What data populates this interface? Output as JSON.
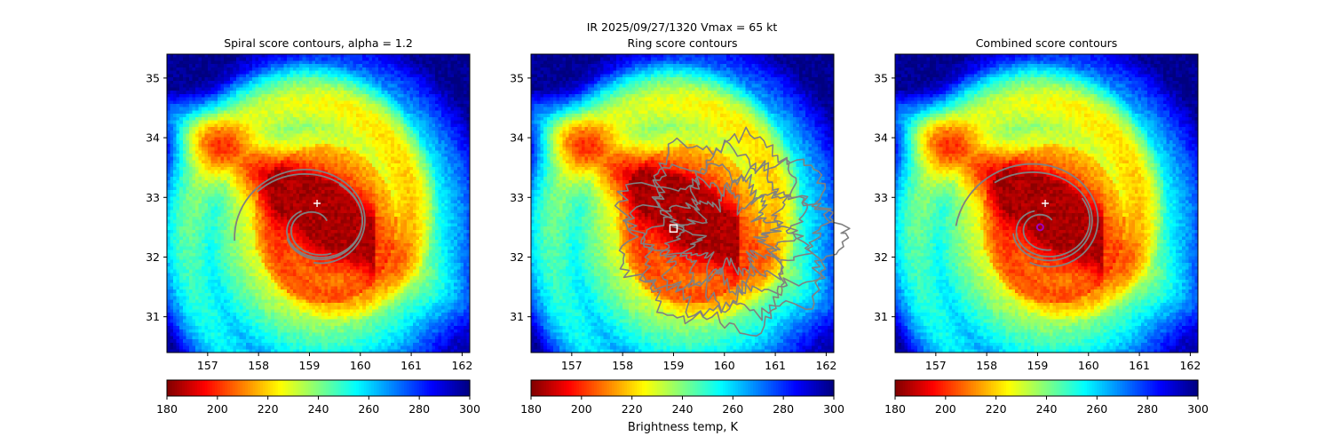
{
  "suptitle_line1": "IR  2025/09/27/1320    Vmax = 65 kt",
  "colorbar_label": "Brightness temp, K",
  "chart_data": {
    "type": "heatmap",
    "field": "IR brightness temperature (K)",
    "colormap": "jet (reversed)",
    "clim": [
      180,
      300
    ],
    "colorbar_ticks": [
      180,
      200,
      220,
      240,
      260,
      280,
      300
    ],
    "xlim": [
      156.2,
      162.15
    ],
    "ylim": [
      30.4,
      35.4
    ],
    "xticks": [
      157,
      158,
      159,
      160,
      161,
      162
    ],
    "yticks": [
      31,
      32,
      33,
      34,
      35
    ],
    "storm_center_estimate": [
      159.15,
      32.9
    ],
    "panels": [
      {
        "title": "Spiral score contours, alpha =  1.2",
        "markers": [
          {
            "type": "plus",
            "color": "#ffffff",
            "lon": 159.15,
            "lat": 32.9
          }
        ]
      },
      {
        "title": "Ring score contours",
        "markers": [
          {
            "type": "square",
            "color": "#ffffff",
            "lon": 159.0,
            "lat": 32.48
          }
        ]
      },
      {
        "title": "Combined score contours",
        "markers": [
          {
            "type": "plus",
            "color": "#ffffff",
            "lon": 159.15,
            "lat": 32.9
          },
          {
            "type": "circle",
            "color": "#a000c0",
            "lon": 159.05,
            "lat": 32.5
          }
        ]
      }
    ]
  }
}
